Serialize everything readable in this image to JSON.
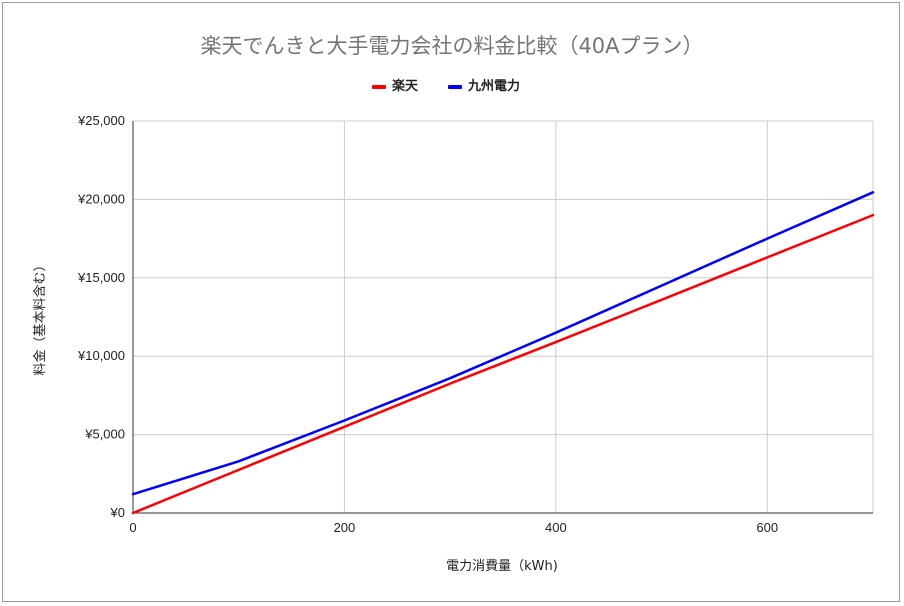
{
  "chart_data": {
    "type": "line",
    "title": "楽天でんきと大手電力会社の料金比較（40Aプラン）",
    "xlabel": "電力消費量（kWh)",
    "ylabel": "料金（基本料含む）",
    "xlim": [
      0,
      700
    ],
    "ylim": [
      0,
      25000
    ],
    "x_ticks": [
      0,
      200,
      400,
      600
    ],
    "x_tick_labels": [
      "0",
      "200",
      "400",
      "600"
    ],
    "y_ticks": [
      0,
      5000,
      10000,
      15000,
      20000,
      25000
    ],
    "y_tick_labels": [
      "¥0",
      "¥5,000",
      "¥10,000",
      "¥15,000",
      "¥20,000",
      "¥25,000"
    ],
    "grid": true,
    "legend_position": "top",
    "series": [
      {
        "name": "楽天",
        "color": "#ff0000",
        "x": [
          0,
          100,
          200,
          300,
          400,
          500,
          600,
          700
        ],
        "y": [
          0,
          2750,
          5500,
          8250,
          10900,
          13600,
          16300,
          19000
        ]
      },
      {
        "name": "九州電力",
        "color": "#0000ff",
        "x": [
          0,
          100,
          200,
          300,
          400,
          500,
          600,
          700
        ],
        "y": [
          1200,
          3300,
          5900,
          8600,
          11500,
          14500,
          17500,
          20450
        ]
      }
    ]
  }
}
